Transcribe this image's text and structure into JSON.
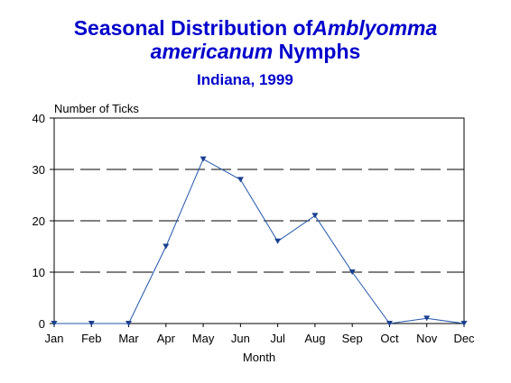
{
  "chart_data": {
    "type": "line",
    "title_part1": "Seasonal Distribution of",
    "title_italic1": "Amblyomma",
    "title_italic2": "americanum",
    "title_part2": " Nymphs",
    "subtitle": "Indiana, 1999",
    "xlabel": "Month",
    "ylabel": "Number of Ticks",
    "categories": [
      "Jan",
      "Feb",
      "Mar",
      "Apr",
      "May",
      "Jun",
      "Jul",
      "Aug",
      "Sep",
      "Oct",
      "Nov",
      "Dec"
    ],
    "values": [
      0,
      0,
      0,
      15,
      32,
      28,
      16,
      21,
      10,
      0,
      1,
      0
    ],
    "ylim": [
      0,
      40
    ],
    "yticks": [
      0,
      10,
      20,
      30,
      40
    ],
    "grid": "dashed horizontal",
    "colors": {
      "line": "#2255aa",
      "marker": "#1a3f8f",
      "title": "#0000cc",
      "grid": "#000000"
    }
  }
}
